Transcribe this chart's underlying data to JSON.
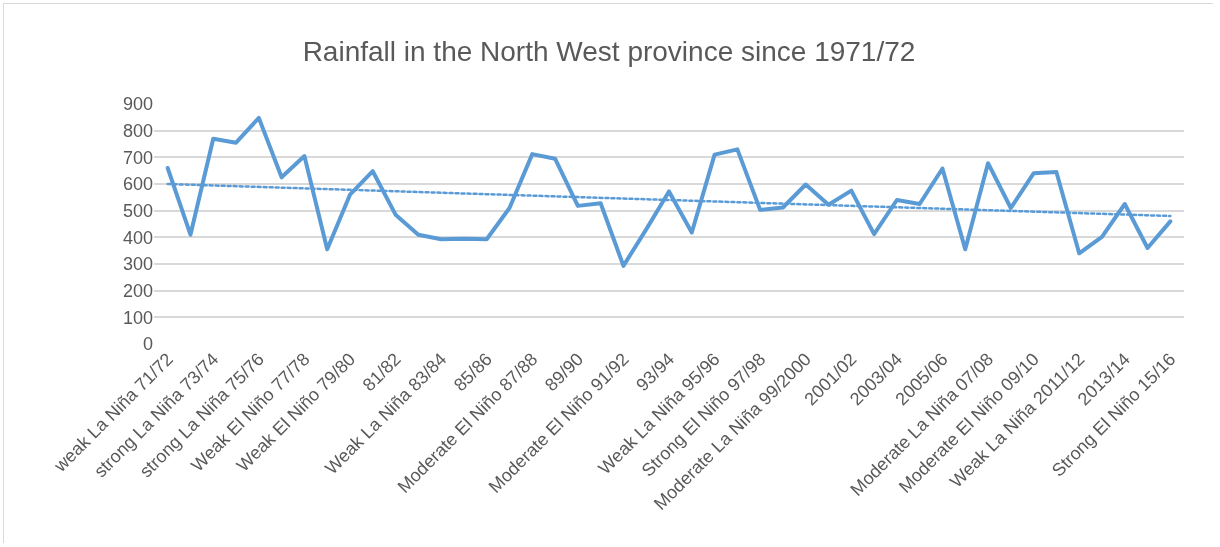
{
  "chart_data": {
    "type": "line",
    "title": "Rainfall in the North West province since 1971/72",
    "categories": [
      "weak La Niña 71/72",
      null,
      "strong La Niña 73/74",
      null,
      "strong La Niña 75/76",
      null,
      "Weak El Niño 77/78",
      null,
      "Weak El Niño 79/80",
      null,
      "81/82",
      null,
      "Weak La Niña 83/84",
      null,
      "85/86",
      null,
      "Moderate El Niño 87/88",
      null,
      "89/90",
      null,
      "Moderate El Niño 91/92",
      null,
      "93/94",
      null,
      "Weak La Niña 95/96",
      null,
      "Strong El Niño 97/98",
      null,
      "Moderate La Niña 99/2000",
      null,
      "2001/02",
      null,
      "2003/04",
      null,
      "2005/06",
      null,
      "Moderate La Niña 07/08",
      null,
      "Moderate El Niño 09/10",
      null,
      "Weak La Niña 2011/12",
      null,
      "2013/14",
      null,
      "Strong El Niño 15/16"
    ],
    "series": [
      {
        "color": "#5b9bd5",
        "line_style": "solid",
        "values": [
          660,
          410,
          770,
          755,
          848,
          625,
          705,
          355,
          560,
          648,
          485,
          410,
          393,
          395,
          393,
          510,
          712,
          695,
          518,
          528,
          293,
          430,
          572,
          418,
          710,
          730,
          503,
          512,
          598,
          522,
          575,
          412,
          540,
          525,
          658,
          355,
          678,
          510,
          640,
          645,
          340,
          402,
          525,
          360,
          460
        ]
      },
      {
        "color": "#5b9bd5",
        "line_style": "dotted",
        "x": [
          "weak La Niña 71/72",
          "Strong El Niño 15/16"
        ],
        "values": [
          600,
          480
        ]
      }
    ],
    "ylim": [
      0,
      900
    ],
    "yticks": [
      0,
      100,
      200,
      300,
      400,
      500,
      600,
      700,
      800,
      900
    ],
    "grid": "y",
    "marker": "none"
  }
}
